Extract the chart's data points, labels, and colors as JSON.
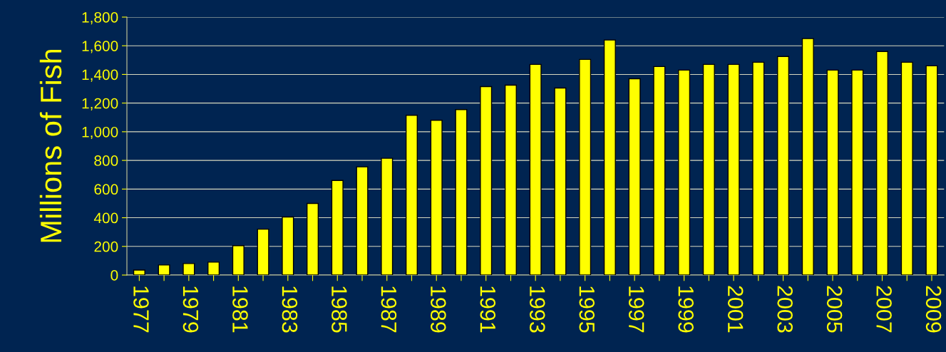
{
  "chart_data": {
    "type": "bar",
    "ylabel": "Millions of Fish",
    "categories": [
      "1977",
      null,
      "1979",
      null,
      "1981",
      null,
      "1983",
      null,
      "1985",
      null,
      "1987",
      null,
      "1989",
      null,
      "1991",
      null,
      "1993",
      null,
      "1995",
      null,
      "1997",
      null,
      "1999",
      null,
      "2001",
      null,
      "2003",
      null,
      "2005",
      null,
      "2007",
      null,
      "2009"
    ],
    "values": [
      35,
      70,
      80,
      90,
      205,
      320,
      405,
      500,
      660,
      755,
      815,
      1115,
      1080,
      1155,
      1315,
      1325,
      1470,
      1305,
      1505,
      1640,
      1370,
      1455,
      1430,
      1470,
      1470,
      1485,
      1525,
      1650,
      1430,
      1430,
      1560,
      1485,
      1460
    ],
    "color": "#ffff00",
    "ylim": [
      0,
      1800
    ],
    "yticks": [
      {
        "value": 0,
        "label": "0"
      },
      {
        "value": 200,
        "label": "200"
      },
      {
        "value": 400,
        "label": "400"
      },
      {
        "value": 600,
        "label": "600"
      },
      {
        "value": 800,
        "label": "800"
      },
      {
        "value": 1000,
        "label": "1,000"
      },
      {
        "value": 1200,
        "label": "1,200"
      },
      {
        "value": 1400,
        "label": "1,400"
      },
      {
        "value": 1600,
        "label": "1,600"
      },
      {
        "value": 1800,
        "label": "1,800"
      }
    ],
    "grid": "y",
    "legend": false
  }
}
